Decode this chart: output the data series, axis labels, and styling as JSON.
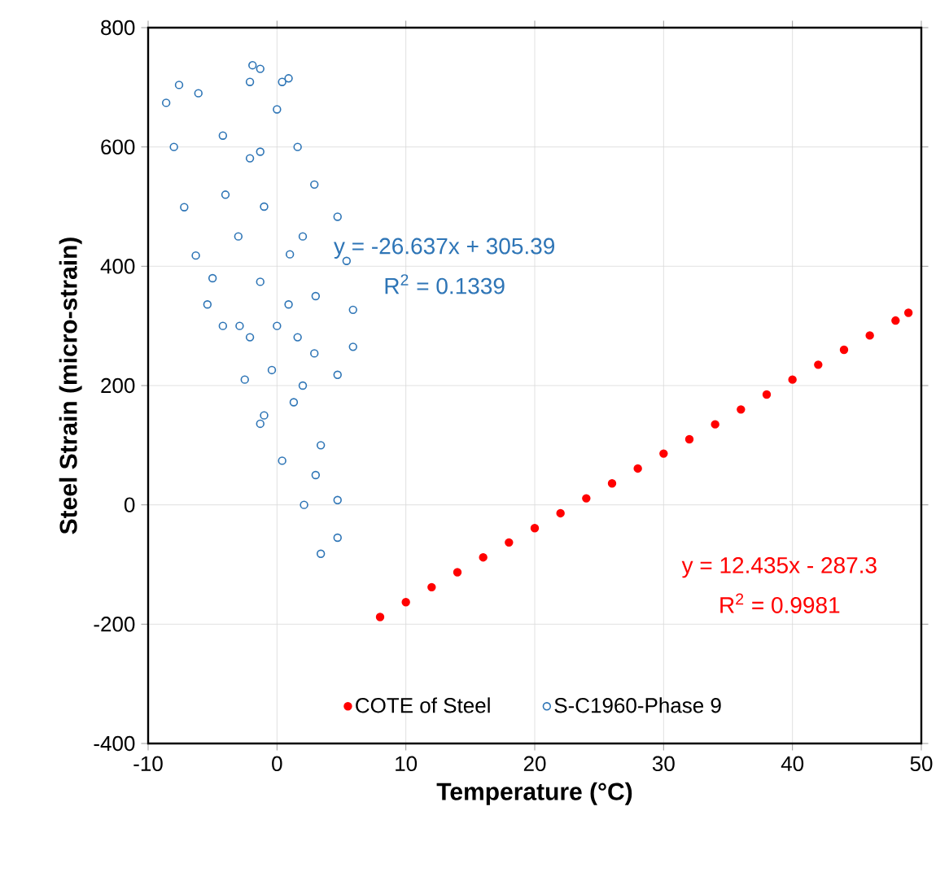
{
  "chart_data": {
    "type": "scatter",
    "xlabel": "Temperature (°C)",
    "ylabel": "Steel Strain (micro-strain)",
    "xlim": [
      -10,
      50
    ],
    "xticks": [
      -10,
      0,
      10,
      20,
      30,
      40,
      50
    ],
    "ylim": [
      -400,
      800
    ],
    "yticks": [
      -400,
      -200,
      0,
      200,
      400,
      600,
      800
    ],
    "grid": true,
    "legend": "bottom",
    "annotations": [
      "y = -26.637x + 305.39",
      "R$^{2}$ = 0.1339",
      "y = 12.435x - 287.3",
      "R$^{2}$ = 0.9981"
    ],
    "series": [
      {
        "name": "COTE of Steel",
        "color": "#ff0000",
        "x": [
          8,
          10,
          12,
          14,
          16,
          18,
          20,
          22,
          24,
          26,
          28,
          30,
          32,
          34,
          36,
          38,
          40,
          42,
          44,
          46,
          48,
          49
        ],
        "values": [
          -188,
          -163,
          -138,
          -113,
          -88,
          -63,
          -39,
          -14,
          11,
          36,
          61,
          86,
          110,
          135,
          160,
          185,
          210,
          235,
          260,
          284,
          309,
          322
        ]
      },
      {
        "name": "S-C1960-Phase 9",
        "color": "#2e75b6",
        "x": [
          -7.6,
          -6.1,
          -4.2,
          -2.1,
          -1.3,
          -2.1,
          -1.9,
          -1.3,
          0.4,
          0.9,
          0,
          1.6,
          2.9,
          4.7,
          5.4,
          5.9,
          5.9,
          4.7,
          2.9,
          1.6,
          0.9,
          -1.3,
          -2.9,
          -2.5,
          -1.3,
          0.4,
          2.1,
          3.4,
          4.7,
          4.7,
          3.4,
          1.3,
          -0.4,
          -2.1,
          -4.2,
          -5.4,
          -6.3,
          -7.2,
          -8.0,
          -8.6,
          -3,
          -1,
          1,
          -4,
          0,
          2,
          -1,
          3,
          -5,
          2,
          3
        ],
        "values": [
          704,
          690,
          619,
          581,
          592,
          709,
          737,
          731,
          709,
          715,
          663,
          600,
          537,
          483,
          409,
          327,
          265,
          218,
          254,
          281,
          336,
          374,
          300,
          210,
          136,
          74,
          0,
          -82,
          -55,
          8,
          100,
          172,
          226,
          281,
          300,
          336,
          418,
          499,
          600,
          674,
          450,
          500,
          420,
          520,
          300,
          200,
          150,
          50,
          380,
          450,
          350
        ]
      }
    ]
  }
}
